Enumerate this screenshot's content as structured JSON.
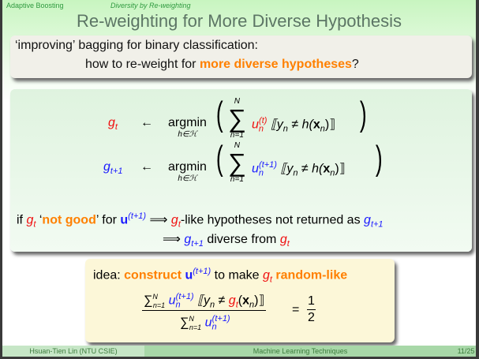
{
  "header": {
    "section": "Adaptive Boosting",
    "subsection": "Diversity by Re-weighting"
  },
  "title": "Re-weighting for More Diverse Hypothesis",
  "intro": {
    "line1": "‘improving’ bagging for binary classification:",
    "line2_pre": "how to re-weight for ",
    "line2_hl": "more diverse hypotheses",
    "line2_post": "?"
  },
  "equations": {
    "eq1_lhs": "g",
    "eq1_lhs_sub": "t",
    "arrow": "←",
    "argmin": "argmin",
    "argmin_sub": "h∈ℋ",
    "sum": "∑",
    "sum_top": "N",
    "sum_bottom": "n=1",
    "eq1_u": "u",
    "u_sub": "n",
    "eq1_u_sup": "(t)",
    "indicator": "⟦y",
    "indicator_sub": "n",
    "indicator_mid": " ≠ h(",
    "x": "x",
    "indicator_end": ")⟧",
    "eq2_lhs": "g",
    "eq2_lhs_sub": "t+1",
    "eq2_u_sup": "(t+1)"
  },
  "reasoning": {
    "if": "if ",
    "g": "g",
    "t": "t",
    "not_good_q1": " ‘",
    "not_good": "not good",
    "not_good_q2": "’ for ",
    "u": "u",
    "u_sup": "(t+1)",
    "implies": " ⟹ ",
    "like": "-like hypotheses not returned as ",
    "g_sub_t1": "t+1",
    "diverse": " diverse from "
  },
  "idea": {
    "label": "idea: ",
    "construct": "construct ",
    "u": "u",
    "u_sup": "(t+1)",
    "to_make": " to make ",
    "g": "g",
    "t": "t",
    "random": " random-like",
    "frac_num_mid": " ≠ ",
    "g_t": "g",
    "frac_end": ")⟧",
    "eq": "=",
    "one": "1",
    "two": "2"
  },
  "footer": {
    "author": "Hsuan-Tien Lin (NTU CSIE)",
    "course": "Machine Learning Techniques",
    "page": "11/25"
  },
  "colors": {
    "accent": "#ff8000",
    "red": "#f01010",
    "blue": "#1a1aff"
  }
}
